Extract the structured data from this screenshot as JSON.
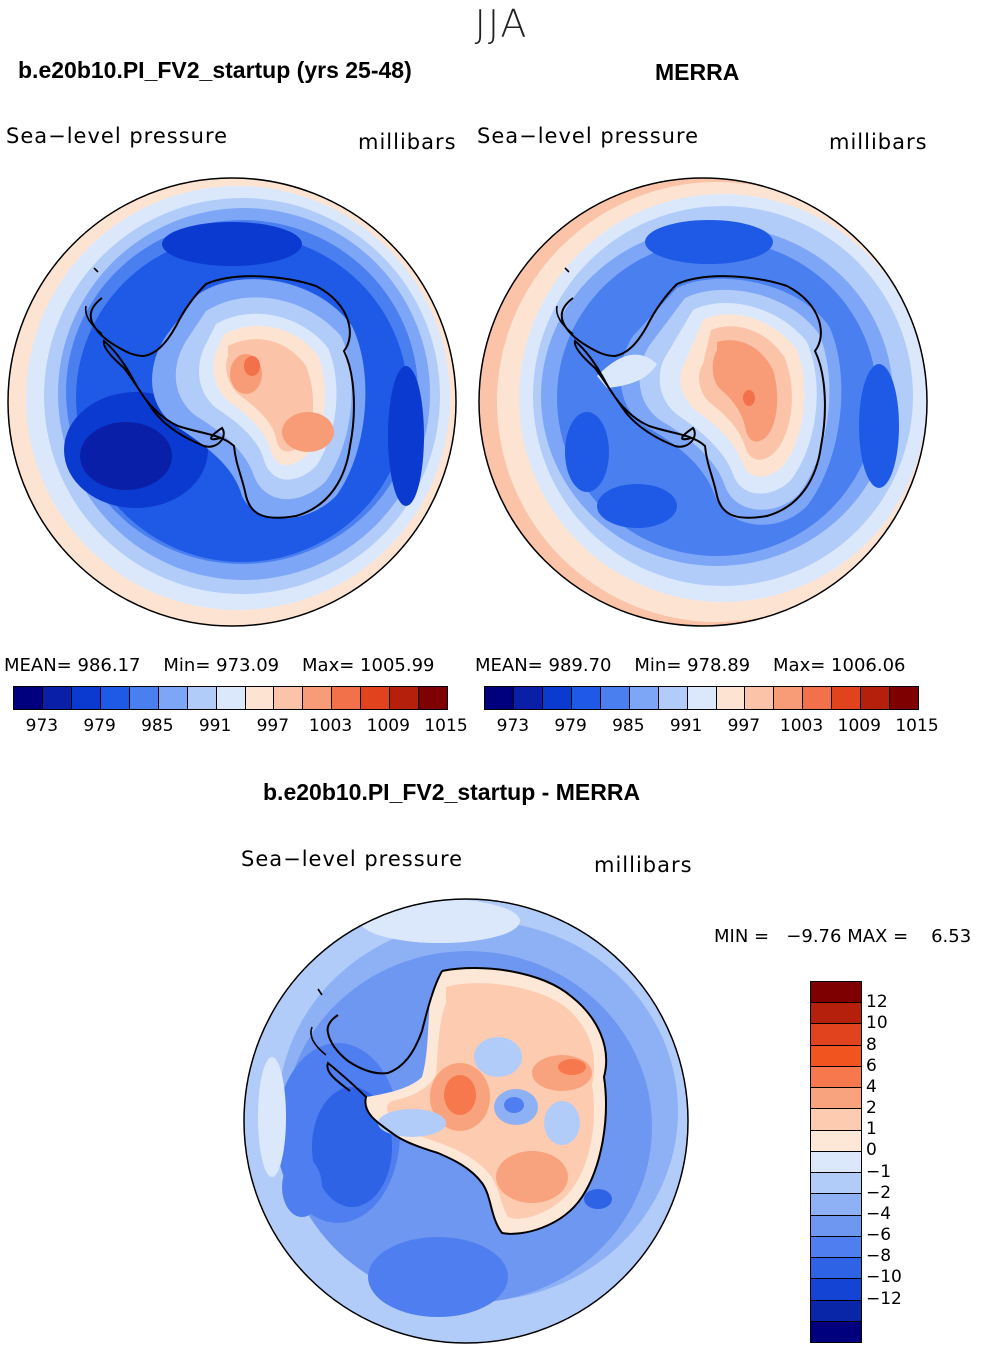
{
  "figure": {
    "season": "JJA"
  },
  "colors": {
    "abs_scale": [
      "#00007f",
      "#0a1fa8",
      "#0b3ad0",
      "#1f5ae6",
      "#4a7ff0",
      "#7ea6f6",
      "#b2ccf9",
      "#dbe8fc",
      "#fde4d2",
      "#fbc3a8",
      "#f89c78",
      "#f2704a",
      "#e2431f",
      "#b5200c",
      "#7f0000"
    ],
    "diff_scale": [
      "#7f0000",
      "#b5200c",
      "#e2431f",
      "#f2541f",
      "#f6784c",
      "#f9a37e",
      "#fccbb0",
      "#fde8d8",
      "#dbe8fc",
      "#b2ccf9",
      "#8eb1f5",
      "#6d97f1",
      "#4f7ef0",
      "#2f63e6",
      "#1444d4",
      "#0a26a8",
      "#00007f"
    ]
  },
  "panels": {
    "model": {
      "title": "b.e20b10.PI_FV2_startup (yrs 25-48)",
      "variable": "Sea−level pressure",
      "units": "millibars",
      "mean_label": "MEAN=",
      "mean": "986.17",
      "min_label": "Min=",
      "min": "973.09",
      "max_label": "Max=",
      "max": "1005.99"
    },
    "obs": {
      "title": "MERRA",
      "variable": "Sea−level pressure",
      "units": "millibars",
      "mean_label": "MEAN=",
      "mean": "989.70",
      "min_label": "Min=",
      "min": "978.89",
      "max_label": "Max=",
      "max": "1006.06"
    },
    "diff": {
      "title": "b.e20b10.PI_FV2_startup - MERRA",
      "variable": "Sea−level pressure",
      "units": "millibars",
      "min_label": "MIN =",
      "min": "−9.76",
      "max_label": "MAX =",
      "max": "6.53"
    }
  },
  "abs_colorbar_labels": [
    "973",
    "979",
    "985",
    "991",
    "997",
    "1003",
    "1009",
    "1015"
  ],
  "diff_colorbar_labels": [
    "12",
    "10",
    "8",
    "6",
    "4",
    "2",
    "1",
    "0",
    "−1",
    "−2",
    "−4",
    "−6",
    "−8",
    "−10",
    "−12"
  ]
}
